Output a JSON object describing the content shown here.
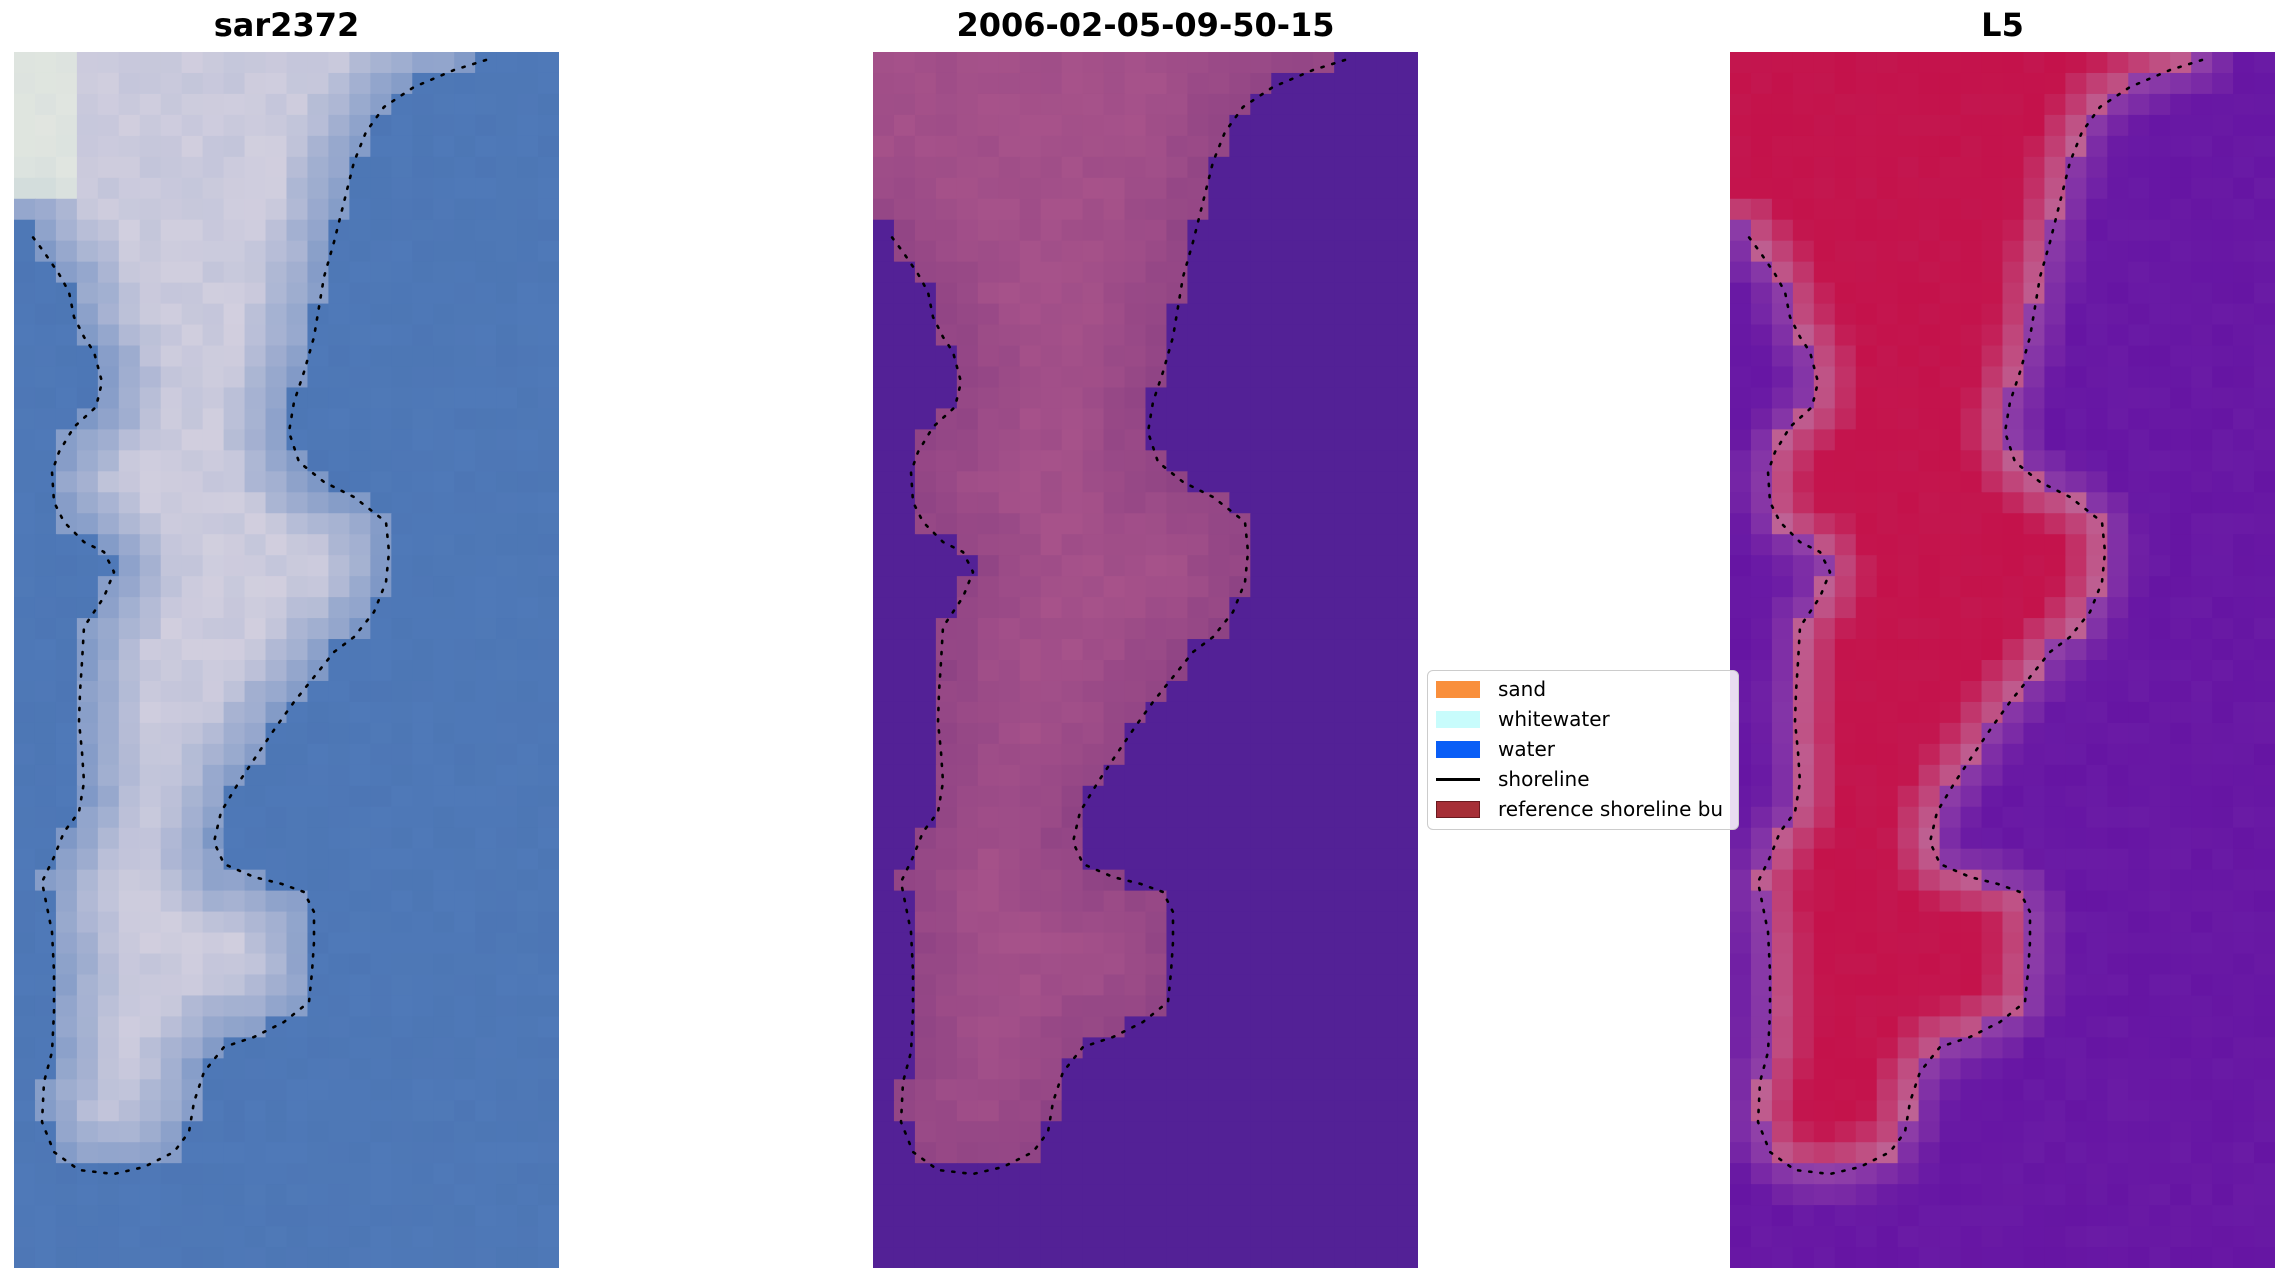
{
  "panels": [
    {
      "title": "sar2372",
      "palette": "rgb"
    },
    {
      "title": "2006-02-05-09-50-15",
      "palette": "class"
    },
    {
      "title": "L5",
      "palette": "index"
    }
  ],
  "legend": {
    "items": [
      {
        "label": "sand",
        "kind": "patch",
        "color": "#f98f3c"
      },
      {
        "label": "whitewater",
        "kind": "patch",
        "color": "#c8fcfc"
      },
      {
        "label": "water",
        "kind": "patch",
        "color": "#0a5ef6"
      },
      {
        "label": "shoreline",
        "kind": "line",
        "color": "#000000"
      },
      {
        "label": "reference shoreline bu",
        "kind": "patch",
        "color": "#a62f37"
      }
    ]
  },
  "colors": {
    "sar_water": "#4f79b8",
    "sar_land": "#c9c9dc",
    "class_background": "#532196",
    "class_buffer": "#8d4284",
    "index_water": "#6a1ba5",
    "index_land": "#c40e47"
  }
}
